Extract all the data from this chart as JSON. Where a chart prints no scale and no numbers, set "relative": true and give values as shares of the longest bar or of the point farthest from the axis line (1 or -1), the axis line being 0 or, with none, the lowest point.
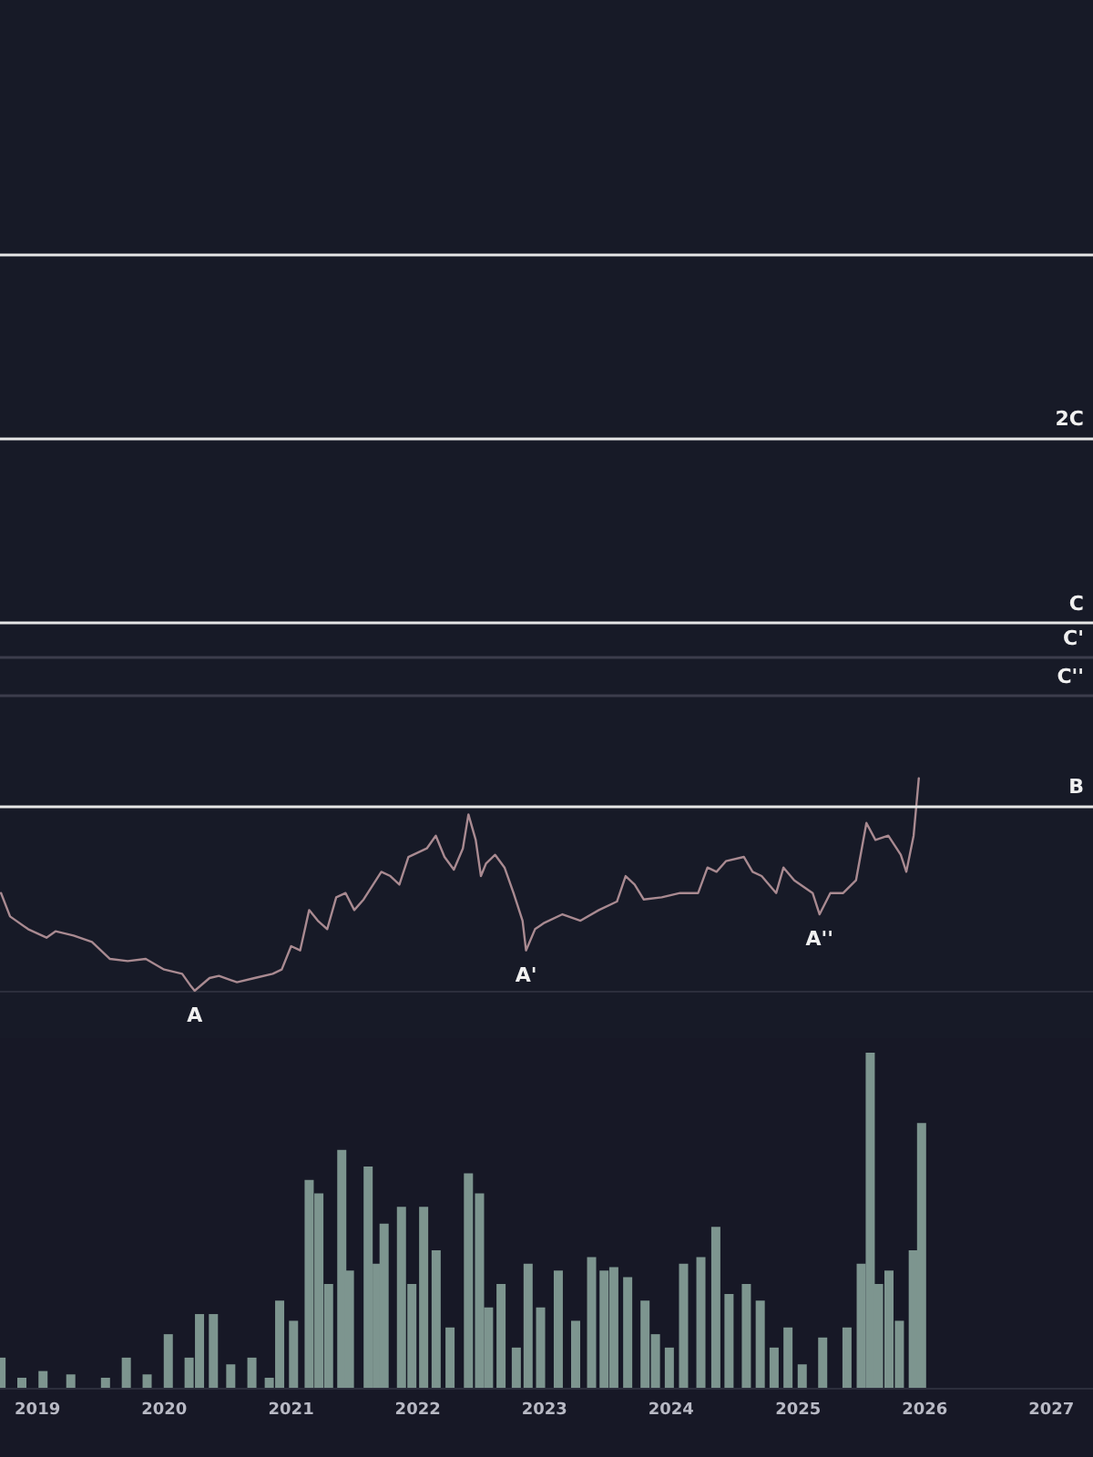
{
  "chart_data": [
    {
      "type": "line",
      "relative": true,
      "tick_labels": false,
      "grid": false,
      "marker": "none",
      "line_style": "solid",
      "xlim": [
        "2018-09-15",
        "2027-05-01"
      ],
      "series": [
        {
          "color": "#a98a91",
          "x": [
            "2018-09-18",
            "2018-10-14",
            "2018-12-05",
            "2019-01-27",
            "2019-02-22",
            "2019-04-15",
            "2019-06-07",
            "2019-07-29",
            "2019-09-18",
            "2019-11-09",
            "2020-01-01",
            "2020-02-22",
            "2020-03-19",
            "2020-03-29",
            "2020-05-11",
            "2020-06-07",
            "2020-07-29",
            "2020-09-18",
            "2020-11-09",
            "2020-12-05",
            "2021-01-01",
            "2021-01-27",
            "2021-02-22",
            "2021-03-19",
            "2021-04-15",
            "2021-05-11",
            "2021-06-07",
            "2021-07-02",
            "2021-07-29",
            "2021-09-18",
            "2021-10-14",
            "2021-11-09",
            "2021-12-05",
            "2022-01-27",
            "2022-02-22",
            "2022-03-19",
            "2022-04-15",
            "2022-05-11",
            "2022-05-27",
            "2022-06-17",
            "2022-07-02",
            "2022-07-17",
            "2022-08-12",
            "2022-09-08",
            "2022-10-04",
            "2022-10-30",
            "2022-11-09",
            "2022-12-05",
            "2023-01-01",
            "2023-02-22",
            "2023-04-15",
            "2023-06-07",
            "2023-07-29",
            "2023-08-23",
            "2023-09-18",
            "2023-10-14",
            "2023-12-05",
            "2024-01-27",
            "2024-03-19",
            "2024-04-15",
            "2024-05-11",
            "2024-06-07",
            "2024-07-29",
            "2024-08-23",
            "2024-09-18",
            "2024-10-30",
            "2024-11-20",
            "2024-12-21",
            "2025-02-12",
            "2025-03-04",
            "2025-04-04",
            "2025-05-11",
            "2025-06-17",
            "2025-07-17",
            "2025-08-12",
            "2025-09-18",
            "2025-10-24",
            "2025-11-09",
            "2025-11-30",
            "2025-12-15"
          ],
          "values": [
            0.46,
            0.35,
            0.29,
            0.25,
            0.28,
            0.26,
            0.23,
            0.15,
            0.14,
            0.15,
            0.1,
            0.08,
            0.02,
            0,
            0.06,
            0.07,
            0.04,
            0.06,
            0.08,
            0.1,
            0.21,
            0.19,
            0.38,
            0.33,
            0.29,
            0.44,
            0.46,
            0.38,
            0.43,
            0.56,
            0.54,
            0.5,
            0.63,
            0.67,
            0.73,
            0.63,
            0.57,
            0.67,
            0.83,
            0.71,
            0.54,
            0.6,
            0.64,
            0.58,
            0.46,
            0.33,
            0.19,
            0.29,
            0.32,
            0.36,
            0.33,
            0.38,
            0.42,
            0.54,
            0.5,
            0.43,
            0.44,
            0.46,
            0.46,
            0.58,
            0.56,
            0.61,
            0.63,
            0.56,
            0.54,
            0.46,
            0.58,
            0.52,
            0.46,
            0.36,
            0.46,
            0.46,
            0.52,
            0.79,
            0.71,
            0.73,
            0.64,
            0.56,
            0.73,
            1
          ]
        }
      ],
      "ref_lines": [
        {
          "axis": "y",
          "value": 0.87,
          "label": "B",
          "color": "#e6e6e6"
        },
        {
          "axis": "y",
          "value": 1.39,
          "label": "C''",
          "color": "#3c3d4c"
        },
        {
          "axis": "y",
          "value": 1.57,
          "label": "C'",
          "color": "#3c3d4c"
        },
        {
          "axis": "y",
          "value": 1.73,
          "label": "C",
          "color": "#e6e6e6"
        },
        {
          "axis": "y",
          "value": 2.6,
          "label": "2C",
          "color": "#e6e6e6"
        },
        {
          "axis": "y",
          "value": 3.47,
          "label": null,
          "color": "#e6e6e6"
        }
      ],
      "annotations": [
        {
          "text": "A",
          "x": "2020-03-29",
          "y": 0
        },
        {
          "text": "A'",
          "x": "2022-11-09",
          "y": 0.19
        },
        {
          "text": "A''",
          "x": "2025-03-04",
          "y": 0.36
        }
      ]
    },
    {
      "type": "bar",
      "relative": true,
      "tick_labels": "x",
      "grid": false,
      "color": "#7d958f",
      "xlim": [
        "2018-09-15",
        "2027-05-01"
      ],
      "xticks": [
        "2019",
        "2020",
        "2021",
        "2022",
        "2023",
        "2024",
        "2025",
        "2026",
        "2027"
      ],
      "x": [
        "2018-09-18",
        "2018-11-17",
        "2019-01-17",
        "2019-04-07",
        "2019-07-16",
        "2019-09-14",
        "2019-11-13",
        "2020-01-13",
        "2020-03-13",
        "2020-04-12",
        "2020-05-22",
        "2020-07-11",
        "2020-09-10",
        "2020-10-30",
        "2020-11-29",
        "2021-01-08",
        "2021-02-22",
        "2021-03-22",
        "2021-04-19",
        "2021-05-27",
        "2021-06-18",
        "2021-08-11",
        "2021-09-06",
        "2021-09-26",
        "2021-11-15",
        "2021-12-15",
        "2022-01-18",
        "2022-02-23",
        "2022-04-04",
        "2022-05-27",
        "2022-06-28",
        "2022-07-24",
        "2022-08-29",
        "2022-10-12",
        "2022-11-15",
        "2022-12-21",
        "2023-02-10",
        "2023-04-01",
        "2023-05-17",
        "2023-06-22",
        "2023-07-20",
        "2023-08-29",
        "2023-10-18",
        "2023-11-17",
        "2023-12-27",
        "2024-02-06",
        "2024-03-27",
        "2024-05-09",
        "2024-06-16",
        "2024-08-05",
        "2024-09-14",
        "2024-10-24",
        "2024-12-03",
        "2025-01-13",
        "2025-03-13",
        "2025-05-22",
        "2025-07-02",
        "2025-07-28",
        "2025-08-21",
        "2025-09-20",
        "2025-10-20",
        "2025-11-29",
        "2025-12-23"
      ],
      "values": [
        0.09,
        0.03,
        0.05,
        0.04,
        0.03,
        0.09,
        0.04,
        0.16,
        0.09,
        0.22,
        0.22,
        0.07,
        0.09,
        0.03,
        0.26,
        0.2,
        0.62,
        0.58,
        0.31,
        0.71,
        0.35,
        0.66,
        0.37,
        0.49,
        0.54,
        0.31,
        0.54,
        0.41,
        0.18,
        0.64,
        0.58,
        0.24,
        0.31,
        0.12,
        0.37,
        0.24,
        0.35,
        0.2,
        0.39,
        0.35,
        0.36,
        0.33,
        0.26,
        0.16,
        0.12,
        0.37,
        0.39,
        0.48,
        0.28,
        0.31,
        0.26,
        0.12,
        0.18,
        0.07,
        0.15,
        0.18,
        0.37,
        1,
        0.31,
        0.35,
        0.2,
        0.41,
        0.79
      ]
    }
  ]
}
